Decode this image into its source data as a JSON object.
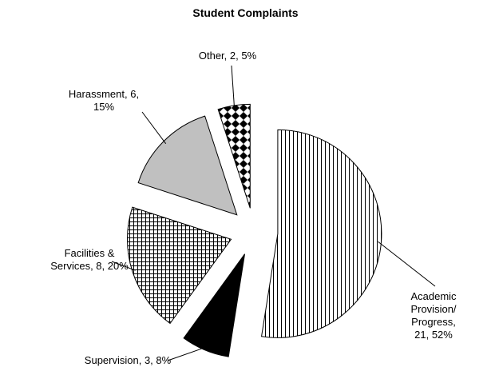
{
  "chart_data": {
    "type": "pie",
    "title": "Student Complaints",
    "values": [
      21,
      3,
      8,
      6,
      2
    ],
    "value_labels": [
      "Academic\nProvision/\nProgress, 21, 52%",
      "Supervision, 3, 8%",
      "Facilities &\nServices, 8, 20%",
      "Harassment, 6,\n15%",
      "Other, 2, 5%"
    ],
    "colors": [
      "#ffffff",
      "#000000",
      "#ffffff",
      "#c0c0c0",
      "#ffffff"
    ],
    "patterns": [
      "vertical",
      "solid",
      "grid",
      "solid",
      "diamond"
    ]
  }
}
